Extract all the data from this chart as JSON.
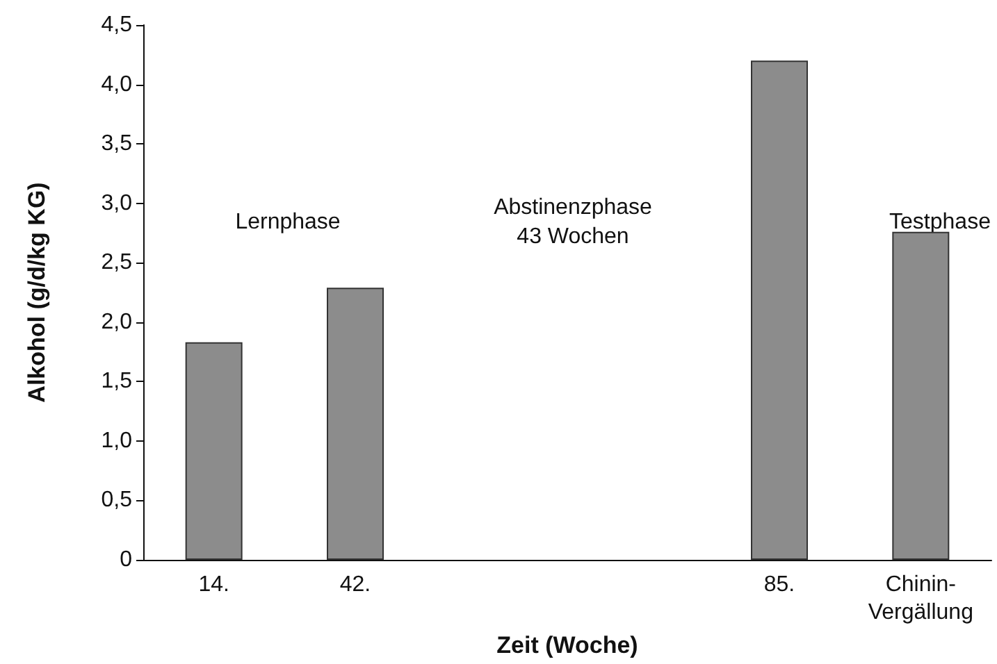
{
  "chart_data": {
    "type": "bar",
    "xlabel": "Zeit (Woche)",
    "ylabel": "Alkohol (g/d/kg KG)",
    "categories": [
      "14.",
      "42.",
      null,
      null,
      "85.",
      "Chinin-\nVergällung"
    ],
    "values": [
      1.83,
      2.29,
      null,
      null,
      4.2,
      2.76
    ],
    "color": "#8c8c8c",
    "ylim": [
      0,
      4.5
    ],
    "yticks": [
      0,
      {
        "value": 0.5,
        "label": "0,5"
      },
      {
        "value": 1,
        "label": "1,0"
      },
      {
        "value": 1.5,
        "label": "1,5"
      },
      {
        "value": 2,
        "label": "2,0"
      },
      {
        "value": 2.5,
        "label": "2,5"
      },
      {
        "value": 3,
        "label": "3,0"
      },
      {
        "value": 3.5,
        "label": "3,5"
      },
      {
        "value": 4,
        "label": "4,0"
      },
      {
        "value": 4.5,
        "label": "4,5"
      }
    ],
    "annotations": [
      "Lernphase",
      "Abstinenzphase\n43 Wochen",
      "Testphase"
    ],
    "grid": false
  }
}
